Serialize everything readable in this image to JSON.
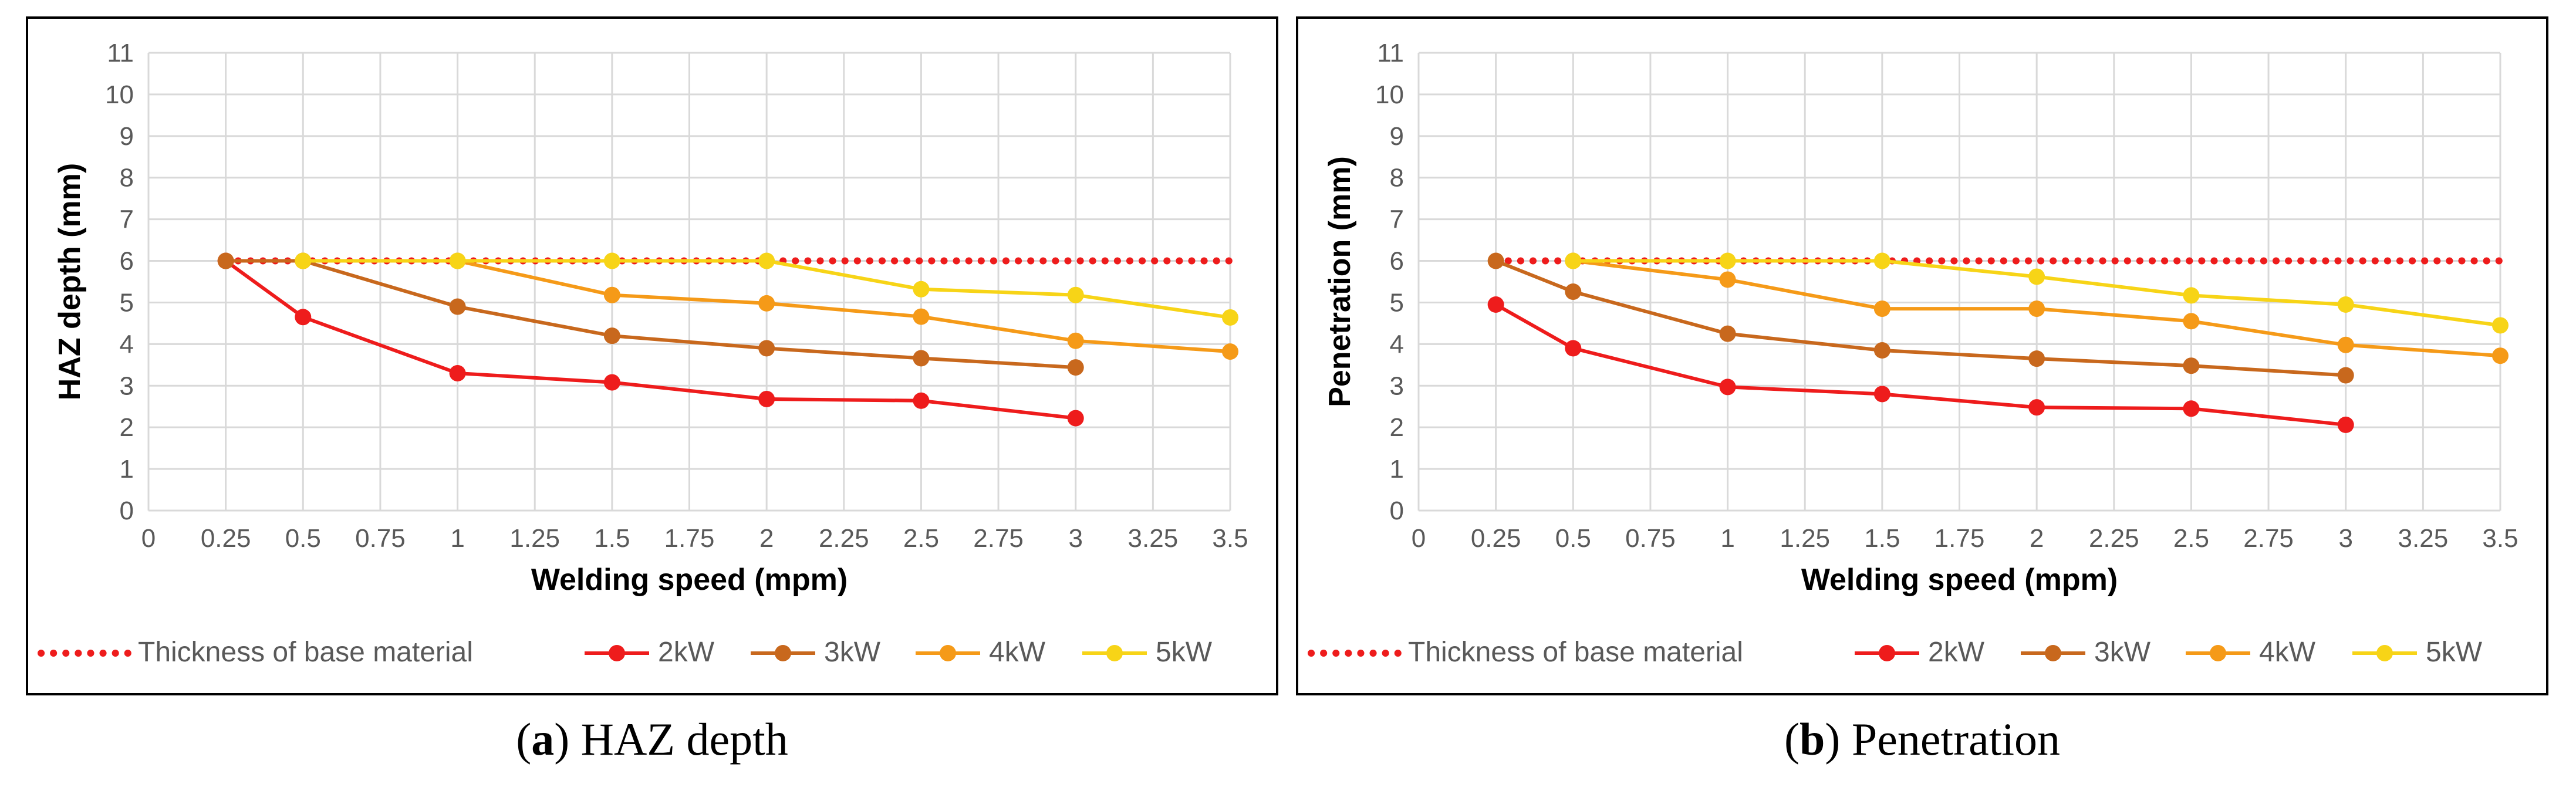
{
  "chart_data": [
    {
      "type": "line",
      "title": "",
      "xlabel": "Welding speed (mpm)",
      "ylabel": "HAZ depth (mm)",
      "xlim": [
        0,
        3.5
      ],
      "ylim": [
        0,
        11
      ],
      "xticks": [
        "0",
        "0.25",
        "0.5",
        "0.75",
        "1",
        "1.25",
        "1.5",
        "1.75",
        "2",
        "2.25",
        "2.5",
        "2.75",
        "3",
        "3.25",
        "3.5"
      ],
      "yticks": [
        "0",
        "1",
        "2",
        "3",
        "4",
        "5",
        "6",
        "7",
        "8",
        "9",
        "10",
        "11"
      ],
      "grid": true,
      "legend_position": "bottom",
      "series": [
        {
          "name": "Thickness of base material",
          "style": "dotted",
          "color": "#ee1c1c",
          "x": [
            0.25,
            3.5
          ],
          "y": [
            6,
            6
          ]
        },
        {
          "name": "2kW",
          "style": "marker-line",
          "color": "#ee1c1c",
          "x": [
            0.25,
            0.5,
            1,
            1.5,
            2,
            2.5,
            3
          ],
          "y": [
            6.0,
            4.65,
            3.3,
            3.08,
            2.68,
            2.64,
            2.22
          ]
        },
        {
          "name": "3kW",
          "style": "marker-line",
          "color": "#c8681d",
          "x": [
            0.25,
            0.5,
            1,
            1.5,
            2,
            2.5,
            3
          ],
          "y": [
            6.0,
            6.0,
            4.9,
            4.2,
            3.9,
            3.66,
            3.44
          ]
        },
        {
          "name": "4kW",
          "style": "marker-line",
          "color": "#f59a18",
          "x": [
            0.5,
            1,
            1.5,
            2,
            2.5,
            3,
            3.5
          ],
          "y": [
            6.0,
            6.0,
            5.18,
            4.98,
            4.66,
            4.08,
            3.82
          ]
        },
        {
          "name": "5kW",
          "style": "marker-line",
          "color": "#f7d417",
          "x": [
            0.5,
            1,
            1.5,
            2,
            2.5,
            3,
            3.5
          ],
          "y": [
            6.0,
            6.0,
            6.0,
            6.0,
            5.32,
            5.18,
            4.64
          ]
        }
      ]
    },
    {
      "type": "line",
      "title": "",
      "xlabel": "Welding speed (mpm)",
      "ylabel": "Penetration (mm)",
      "xlim": [
        0,
        3.5
      ],
      "ylim": [
        0,
        11
      ],
      "xticks": [
        "0",
        "0.25",
        "0.5",
        "0.75",
        "1",
        "1.25",
        "1.5",
        "1.75",
        "2",
        "2.25",
        "2.5",
        "2.75",
        "3",
        "3.25",
        "3.5"
      ],
      "yticks": [
        "0",
        "1",
        "2",
        "3",
        "4",
        "5",
        "6",
        "7",
        "8",
        "9",
        "10",
        "11"
      ],
      "grid": true,
      "legend_position": "bottom",
      "series": [
        {
          "name": "Thickness of base material",
          "style": "dotted",
          "color": "#ee1c1c",
          "x": [
            0.25,
            3.5
          ],
          "y": [
            6,
            6
          ]
        },
        {
          "name": "2kW",
          "style": "marker-line",
          "color": "#ee1c1c",
          "x": [
            0.25,
            0.5,
            1,
            1.5,
            2,
            2.5,
            3
          ],
          "y": [
            4.95,
            3.9,
            2.97,
            2.8,
            2.48,
            2.45,
            2.06
          ]
        },
        {
          "name": "3kW",
          "style": "marker-line",
          "color": "#c8681d",
          "x": [
            0.25,
            0.5,
            1,
            1.5,
            2,
            2.5,
            3
          ],
          "y": [
            6.0,
            5.26,
            4.25,
            3.85,
            3.65,
            3.48,
            3.25
          ]
        },
        {
          "name": "4kW",
          "style": "marker-line",
          "color": "#f59a18",
          "x": [
            0.5,
            1,
            1.5,
            2,
            2.5,
            3,
            3.5
          ],
          "y": [
            6.0,
            5.55,
            4.85,
            4.85,
            4.55,
            3.98,
            3.72
          ]
        },
        {
          "name": "5kW",
          "style": "marker-line",
          "color": "#f7d417",
          "x": [
            0.5,
            1,
            1.5,
            2,
            2.5,
            3,
            3.5
          ],
          "y": [
            6.0,
            6.0,
            6.0,
            5.62,
            5.17,
            4.95,
            4.45
          ]
        }
      ]
    }
  ],
  "captions": [
    {
      "letter": "a",
      "open": "(",
      "close": ")",
      "text": " HAZ depth"
    },
    {
      "letter": "b",
      "open": "(",
      "close": ")",
      "text": " Penetration"
    }
  ]
}
